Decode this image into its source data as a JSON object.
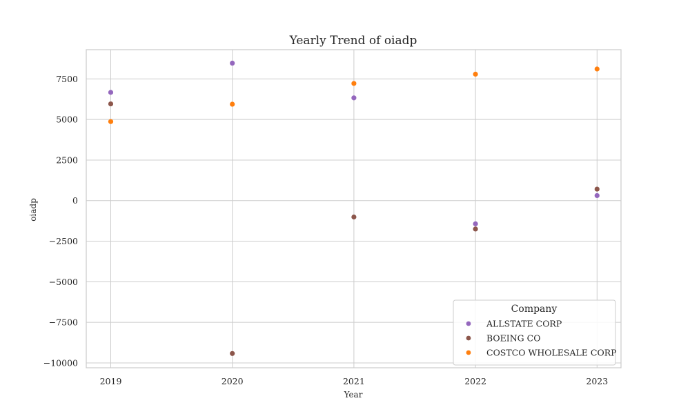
{
  "chart_data": {
    "type": "scatter",
    "title": "Yearly Trend of oiadp",
    "xlabel": "Year",
    "ylabel": "oiadp",
    "x": [
      "2019",
      "2020",
      "2021",
      "2022",
      "2023"
    ],
    "ylim": [
      -10300,
      9300
    ],
    "yticks": [
      -10000,
      -7500,
      -5000,
      -2500,
      0,
      2500,
      5000,
      7500
    ],
    "grid": true,
    "legend": {
      "title": "Company",
      "placement": "lower-right"
    },
    "series": [
      {
        "name": "ALLSTATE CORP",
        "color": "#9467bd",
        "values": [
          6670,
          8470,
          6330,
          -1430,
          310
        ]
      },
      {
        "name": "BOEING CO",
        "color": "#8c564b",
        "values": [
          5960,
          -9420,
          -1010,
          -1750,
          710
        ]
      },
      {
        "name": "COSTCO WHOLESALE CORP",
        "color": "#ff7f0e",
        "values": [
          4870,
          5940,
          7220,
          7790,
          8110
        ]
      }
    ]
  }
}
